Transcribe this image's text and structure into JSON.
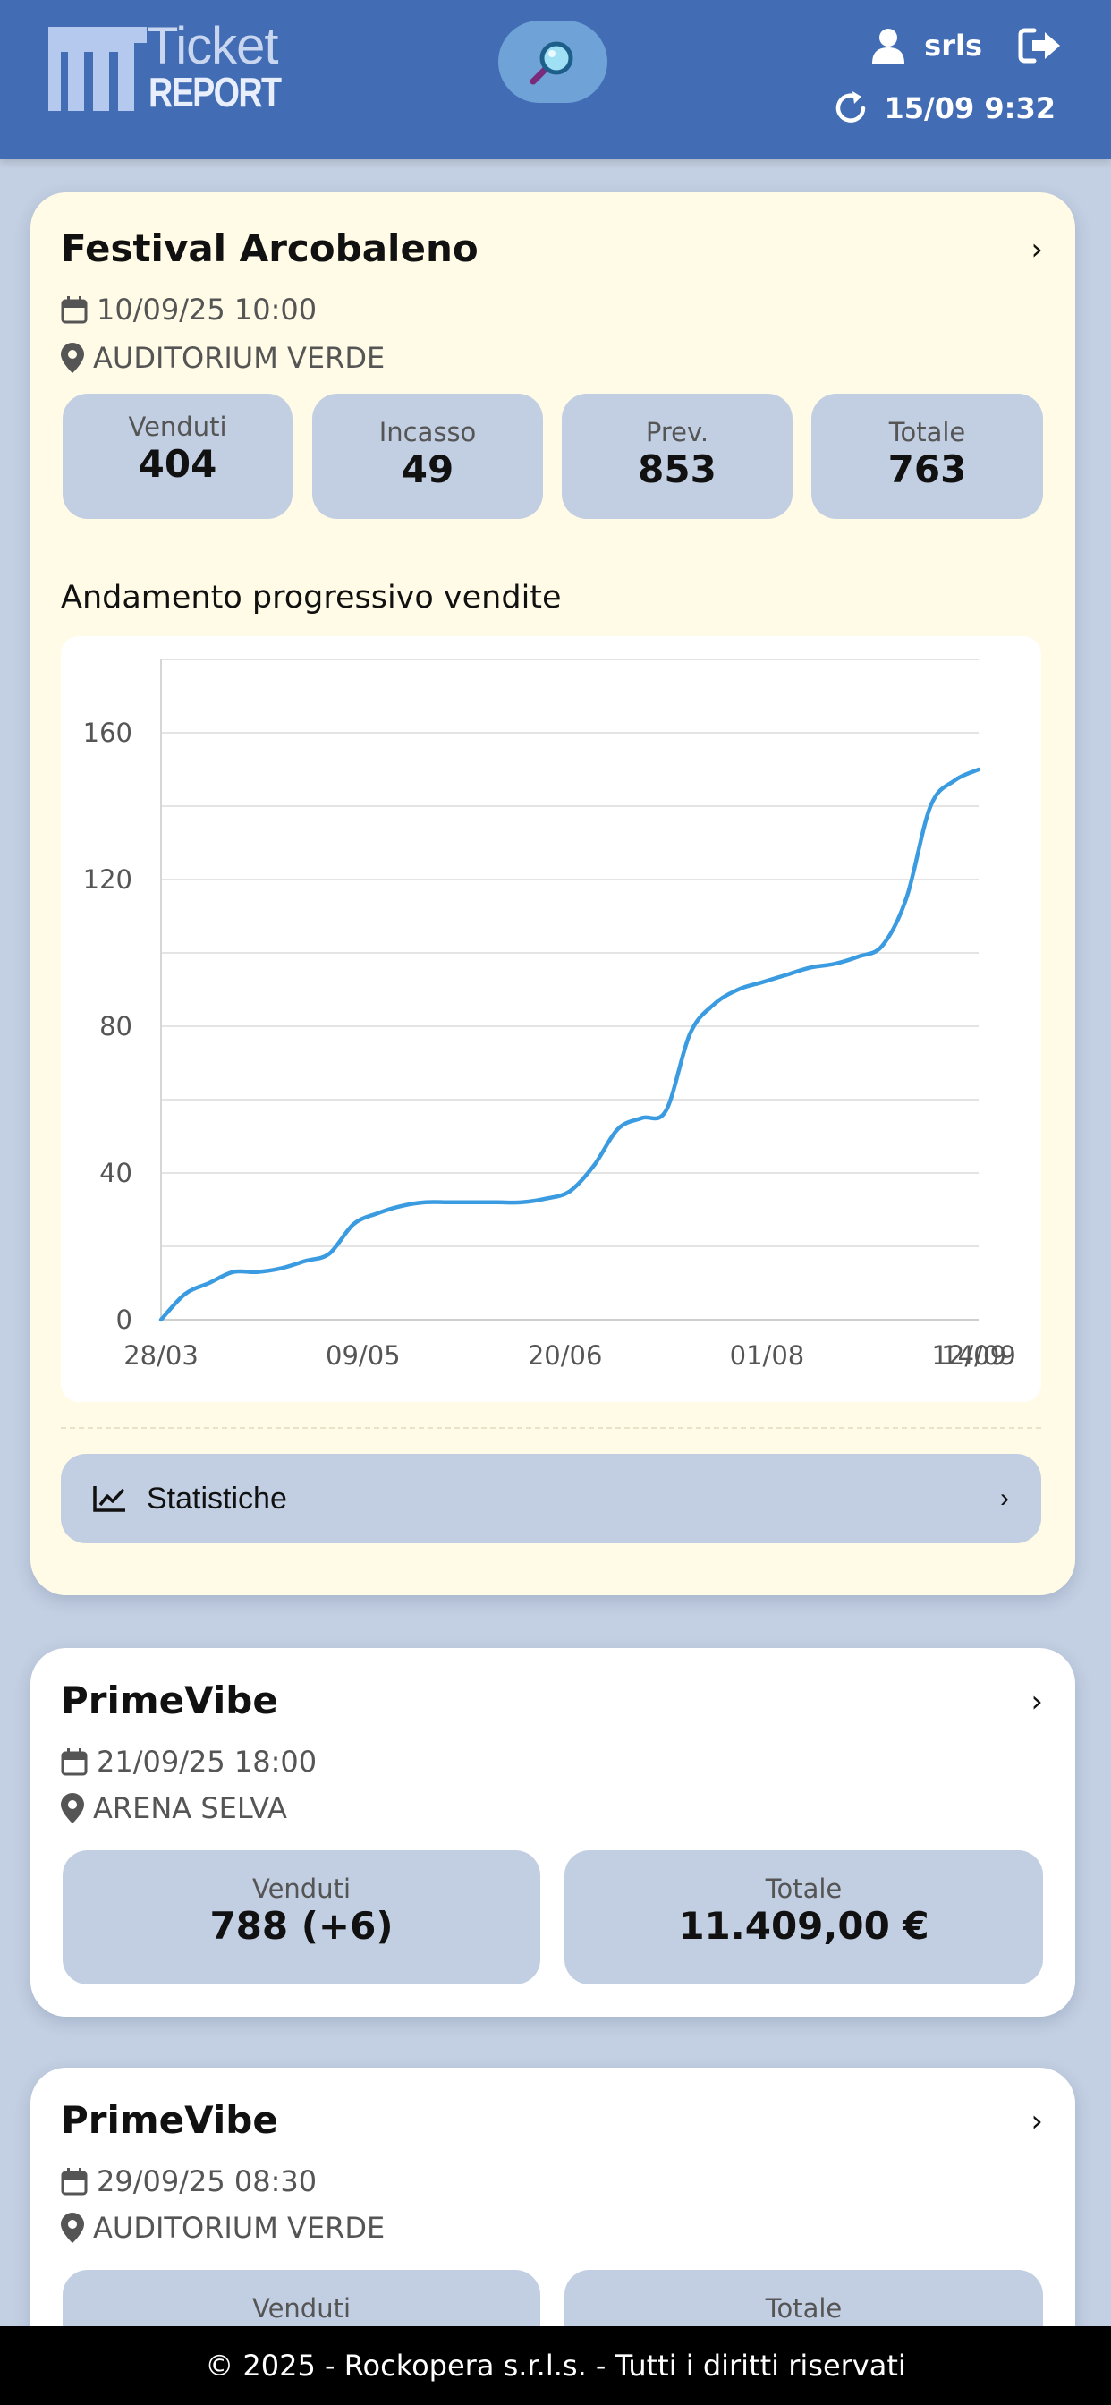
{
  "header": {
    "logo_top": "Ticket",
    "logo_bottom": "REPORT",
    "user": "srls",
    "last_update": "15/09 9:32",
    "colors": {
      "header_bg": "#426cb4",
      "search_bg": "#6fa3d8"
    }
  },
  "events": [
    {
      "title": "Festival Arcobaleno",
      "date": "10/09/25 10:00",
      "venue": "AUDITORIUM VERDE",
      "stats": [
        {
          "label": "Venduti",
          "value": "404"
        },
        {
          "label": "Incasso",
          "value": "49"
        },
        {
          "label": "Prev.",
          "value": "853"
        },
        {
          "label": "Totale",
          "value": "763"
        }
      ],
      "chart_title": "Andamento progressivo vendite",
      "stats_button": "Statistiche"
    },
    {
      "title": "PrimeVibe",
      "date": "21/09/25 18:00",
      "venue": "ARENA SELVA",
      "stats": [
        {
          "label": "Venduti",
          "value": "788 (+6)"
        },
        {
          "label": "Totale",
          "value": "11.409,00 €"
        }
      ]
    },
    {
      "title": "PrimeVibe",
      "date": "29/09/25 08:30",
      "venue": "AUDITORIUM VERDE",
      "stats": [
        {
          "label": "Venduti",
          "value": ""
        },
        {
          "label": "Totale",
          "value": ""
        }
      ]
    }
  ],
  "chart_data": {
    "type": "line",
    "title": "Andamento progressivo vendite",
    "xlabel": "",
    "ylabel": "",
    "x_ticks": [
      "28/03",
      "09/05",
      "20/06",
      "01/08",
      "12/09",
      "14/09"
    ],
    "y_ticks": [
      0,
      40,
      80,
      120,
      160
    ],
    "ylim": [
      0,
      180
    ],
    "grid": true,
    "series": [
      {
        "color": "#3b9be0",
        "x": [
          "28/03",
          "02/04",
          "07/04",
          "12/04",
          "17/04",
          "22/04",
          "27/04",
          "02/05",
          "07/05",
          "12/05",
          "17/05",
          "22/05",
          "27/05",
          "01/06",
          "06/06",
          "11/06",
          "16/06",
          "21/06",
          "26/06",
          "01/07",
          "06/07",
          "11/07",
          "16/07",
          "21/07",
          "26/07",
          "31/07",
          "05/08",
          "10/08",
          "15/08",
          "20/08",
          "25/08",
          "30/08",
          "04/09",
          "09/09",
          "14/09"
        ],
        "values": [
          0,
          7,
          10,
          13,
          13,
          14,
          16,
          18,
          26,
          29,
          31,
          32,
          32,
          32,
          32,
          32,
          33,
          35,
          42,
          52,
          55,
          57,
          78,
          86,
          90,
          92,
          94,
          96,
          97,
          99,
          102,
          115,
          140,
          147,
          150
        ]
      }
    ]
  },
  "footer": {
    "text": "© 2025 - Rockopera s.r.l.s. - Tutti i diritti riservati"
  }
}
